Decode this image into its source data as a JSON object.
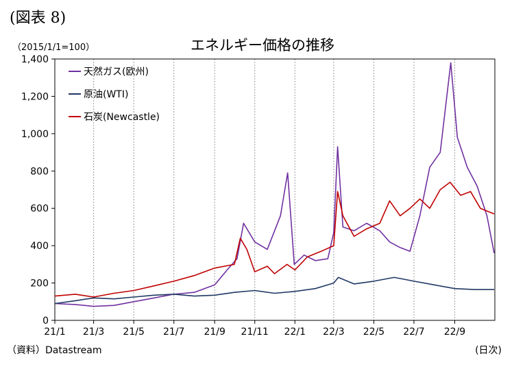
{
  "figure_label": "(図表 8)",
  "unit_label": "（2015/1/1=100）",
  "source_label": "（資料）Datastream",
  "x_unit_label": "(日次)",
  "chart_data": {
    "type": "line",
    "title": "エネルギー価格の推移",
    "xlabel": "",
    "ylabel": "",
    "ylim": [
      0,
      1400
    ],
    "yticks": [
      0,
      200,
      400,
      600,
      800,
      1000,
      1200,
      1400
    ],
    "ytick_labels": [
      "0",
      "200",
      "400",
      "600",
      "800",
      "1,000",
      "1,200",
      "1,400"
    ],
    "xticks": [
      "2021-01",
      "2021-03",
      "2021-05",
      "2021-07",
      "2021-09",
      "2021-11",
      "2022-01",
      "2022-03",
      "2022-05",
      "2022-07",
      "2022-09"
    ],
    "xtick_labels": [
      "21/1",
      "21/3",
      "21/5",
      "21/7",
      "21/9",
      "21/11",
      "22/1",
      "22/3",
      "22/5",
      "22/7",
      "22/9"
    ],
    "xlim": [
      "2021-01",
      "2022-11"
    ],
    "grid": "vertical dotted",
    "legend_position": "top-left",
    "series": [
      {
        "name": "天然ガス(欧州)",
        "color": "#7030a0",
        "x": [
          "2021-01-01",
          "2021-02-01",
          "2021-03-01",
          "2021-04-01",
          "2021-05-01",
          "2021-06-01",
          "2021-07-01",
          "2021-08-01",
          "2021-09-01",
          "2021-09-20",
          "2021-10-05",
          "2021-10-15",
          "2021-11-01",
          "2021-11-20",
          "2021-12-10",
          "2021-12-21",
          "2021-12-31",
          "2022-01-15",
          "2022-02-01",
          "2022-02-20",
          "2022-03-01",
          "2022-03-07",
          "2022-03-15",
          "2022-04-01",
          "2022-04-20",
          "2022-05-10",
          "2022-05-25",
          "2022-06-10",
          "2022-06-25",
          "2022-07-10",
          "2022-07-25",
          "2022-08-10",
          "2022-08-26",
          "2022-09-05",
          "2022-09-20",
          "2022-10-05",
          "2022-10-20",
          "2022-10-31"
        ],
        "values": [
          90,
          85,
          75,
          80,
          100,
          120,
          140,
          150,
          190,
          270,
          330,
          520,
          420,
          380,
          560,
          790,
          300,
          350,
          320,
          330,
          470,
          930,
          500,
          480,
          520,
          480,
          420,
          390,
          370,
          560,
          820,
          900,
          1380,
          980,
          820,
          720,
          560,
          360
        ]
      },
      {
        "name": "原油(WTI)",
        "color": "#1f3864",
        "x": [
          "2021-01-01",
          "2021-02-01",
          "2021-03-01",
          "2021-04-01",
          "2021-05-01",
          "2021-06-01",
          "2021-07-01",
          "2021-08-01",
          "2021-09-01",
          "2021-10-01",
          "2021-11-01",
          "2021-12-01",
          "2022-01-01",
          "2022-02-01",
          "2022-03-01",
          "2022-03-08",
          "2022-04-01",
          "2022-05-01",
          "2022-06-01",
          "2022-07-01",
          "2022-08-01",
          "2022-09-01",
          "2022-10-01",
          "2022-10-31"
        ],
        "values": [
          90,
          105,
          120,
          115,
          125,
          135,
          140,
          130,
          135,
          150,
          160,
          145,
          155,
          170,
          200,
          230,
          195,
          210,
          230,
          210,
          190,
          170,
          165,
          165
        ]
      },
      {
        "name": "石炭(Newcastle)",
        "color": "#c00000",
        "x": [
          "2021-01-01",
          "2021-02-01",
          "2021-03-01",
          "2021-04-01",
          "2021-05-01",
          "2021-06-01",
          "2021-07-01",
          "2021-08-01",
          "2021-09-01",
          "2021-10-01",
          "2021-10-10",
          "2021-10-20",
          "2021-11-01",
          "2021-11-20",
          "2021-12-01",
          "2021-12-20",
          "2022-01-01",
          "2022-01-20",
          "2022-02-10",
          "2022-03-01",
          "2022-03-07",
          "2022-03-15",
          "2022-04-01",
          "2022-04-20",
          "2022-05-10",
          "2022-05-25",
          "2022-06-10",
          "2022-06-25",
          "2022-07-10",
          "2022-07-25",
          "2022-08-10",
          "2022-08-25",
          "2022-09-10",
          "2022-09-25",
          "2022-10-10",
          "2022-10-31"
        ],
        "values": [
          130,
          140,
          125,
          145,
          160,
          185,
          210,
          240,
          280,
          300,
          440,
          380,
          260,
          290,
          250,
          300,
          270,
          340,
          370,
          400,
          690,
          560,
          450,
          490,
          520,
          640,
          560,
          600,
          650,
          600,
          700,
          740,
          670,
          690,
          600,
          570
        ]
      }
    ]
  }
}
